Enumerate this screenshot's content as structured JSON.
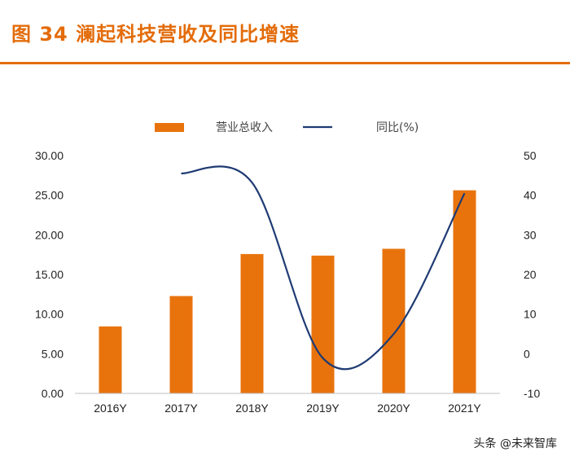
{
  "header": {
    "title": "图 34 澜起科技营收及同比增速"
  },
  "watermark": "头条 @未来智库",
  "colors": {
    "accent": "#e36c0a",
    "bar": "#e8730c",
    "line": "#1f3b73"
  },
  "chart_data": {
    "type": "bar",
    "categories": [
      "2016Y",
      "2017Y",
      "2018Y",
      "2019Y",
      "2020Y",
      "2021Y"
    ],
    "series": [
      {
        "name": "营业总收入",
        "type": "bar",
        "axis": "left",
        "values": [
          8.45,
          12.28,
          17.58,
          17.38,
          18.24,
          25.62
        ]
      },
      {
        "name": "同比(%)",
        "type": "line",
        "axis": "right",
        "values": [
          null,
          45.5,
          43.2,
          -1.1,
          5.0,
          40.5
        ]
      }
    ],
    "y_left": {
      "min": 0,
      "max": 30,
      "step": 5,
      "ticks": [
        "0.00",
        "5.00",
        "10.00",
        "15.00",
        "20.00",
        "25.00",
        "30.00"
      ]
    },
    "y_right": {
      "min": -10,
      "max": 50,
      "step": 10,
      "ticks": [
        "-10",
        "0",
        "10",
        "20",
        "30",
        "40",
        "50"
      ]
    },
    "legend_placement": "top",
    "grid": false
  }
}
